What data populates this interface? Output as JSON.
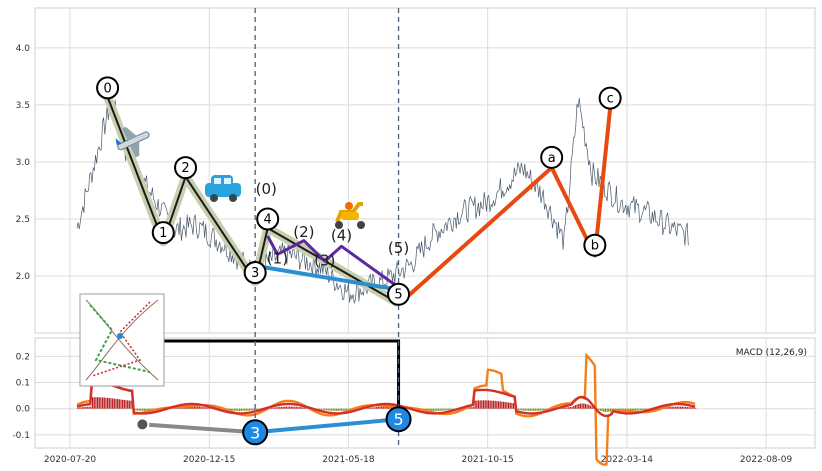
{
  "chart_data": [
    {
      "type": "line",
      "panel": "price",
      "ylim": [
        1.5,
        4.35
      ],
      "yticks": [
        "2.0",
        "2.5",
        "3.0",
        "3.5",
        "4.0"
      ],
      "ytick_values": [
        2.0,
        2.5,
        3.0,
        3.5,
        4.0
      ],
      "grid": true,
      "series": [
        {
          "values": [
            [
              0.05,
              2.42
            ],
            [
              0.3,
              3.55
            ],
            [
              0.4,
              3.1
            ],
            [
              0.55,
              2.78
            ],
            [
              0.75,
              2.4
            ],
            [
              0.9,
              2.45
            ],
            [
              1.1,
              2.28
            ],
            [
              1.3,
              2.05
            ],
            [
              1.55,
              2.2
            ],
            [
              1.8,
              2.08
            ],
            [
              2.0,
              1.85
            ],
            [
              2.25,
              1.95
            ],
            [
              2.45,
              2.1
            ],
            [
              2.6,
              2.35
            ],
            [
              2.8,
              2.55
            ],
            [
              3.0,
              2.65
            ],
            [
              3.25,
              2.95
            ],
            [
              3.4,
              2.7
            ],
            [
              3.55,
              2.3
            ],
            [
              3.65,
              3.55
            ],
            [
              3.75,
              2.9
            ],
            [
              3.95,
              2.65
            ],
            [
              4.15,
              2.55
            ],
            [
              4.35,
              2.4
            ],
            [
              4.45,
              2.35
            ]
          ]
        }
      ],
      "wave_labels": [
        {
          "label": "0",
          "x": 0.27,
          "y": 3.65
        },
        {
          "label": "1",
          "x": 0.67,
          "y": 2.38
        },
        {
          "label": "2",
          "x": 0.83,
          "y": 2.95
        },
        {
          "label": "3",
          "x": 1.33,
          "y": 2.03
        },
        {
          "label": "4",
          "x": 1.42,
          "y": 2.5
        },
        {
          "label": "5",
          "x": 2.36,
          "y": 1.84
        },
        {
          "label": "a",
          "x": 3.46,
          "y": 3.04
        },
        {
          "label": "b",
          "x": 3.77,
          "y": 2.27
        },
        {
          "label": "c",
          "x": 3.88,
          "y": 3.56
        }
      ],
      "sub_wave_labels": [
        {
          "label": "(0)",
          "x": 1.41,
          "y": 2.72
        },
        {
          "label": "(1)",
          "x": 1.49,
          "y": 2.11
        },
        {
          "label": "(2)",
          "x": 1.68,
          "y": 2.34
        },
        {
          "label": "(3)",
          "x": 1.83,
          "y": 2.09
        },
        {
          "label": "(4)",
          "x": 1.95,
          "y": 2.31
        },
        {
          "label": "(5)",
          "x": 2.36,
          "y": 2.2
        }
      ],
      "vlines": [
        1.33,
        2.36
      ],
      "icons": [
        "airplane-icon",
        "car-icon",
        "scooter-icon",
        "inset-chart-thumbnail"
      ]
    },
    {
      "type": "bar",
      "panel": "macd",
      "legend": "MACD (12,26,9)",
      "ylim": [
        -0.15,
        0.27
      ],
      "yticks": [
        "-0.1",
        "0.0",
        "0.1",
        "0.2"
      ],
      "ytick_values": [
        -0.1,
        0.0,
        0.1,
        0.2
      ],
      "xticks": [
        "2020-07-20",
        "2020-12-15",
        "2021-05-18",
        "2021-10-15",
        "2022-03-14",
        "2022-08-09"
      ],
      "xtick_values": [
        0,
        1,
        2,
        3,
        4,
        5
      ],
      "xlim": [
        0,
        5.1
      ],
      "markers": [
        {
          "label": "3",
          "x": 1.33,
          "y": -0.09
        },
        {
          "label": "5",
          "x": 2.36,
          "y": -0.04
        }
      ],
      "colors": {
        "macd": "#f57f17",
        "signal": "#d32f2f",
        "hist_pos": "#b71c1c",
        "hist_neg": "#7a8b00"
      }
    }
  ]
}
